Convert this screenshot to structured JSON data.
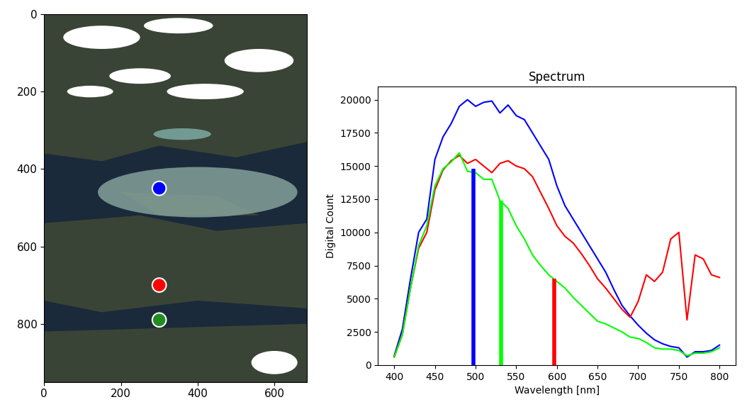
{
  "chart_data": [
    {
      "type": "image",
      "xlim": [
        0,
        685
      ],
      "ylim": [
        950,
        0
      ],
      "xticks": [
        0,
        200,
        400,
        600
      ],
      "yticks": [
        0,
        200,
        400,
        600,
        800
      ],
      "points": {
        "x": [
          300,
          300,
          300
        ],
        "y": [
          450,
          700,
          790
        ],
        "colors": [
          "#0000ff",
          "#ff0000",
          "#228b22"
        ]
      }
    },
    {
      "type": "line",
      "title": "Spectrum",
      "xlabel": "Wavelength [nm]",
      "ylabel": "Digital Count",
      "xlim": [
        380,
        820
      ],
      "ylim": [
        0,
        21000
      ],
      "xticks": [
        400,
        450,
        500,
        550,
        600,
        650,
        700,
        750,
        800
      ],
      "yticks": [
        0,
        2500,
        5000,
        7500,
        10000,
        12500,
        15000,
        17500,
        20000
      ],
      "x": [
        400,
        410,
        420,
        430,
        440,
        450,
        460,
        470,
        480,
        490,
        500,
        510,
        520,
        530,
        540,
        550,
        560,
        570,
        580,
        590,
        600,
        610,
        620,
        630,
        640,
        650,
        660,
        670,
        680,
        690,
        700,
        710,
        720,
        730,
        740,
        750,
        760,
        770,
        780,
        790,
        800
      ],
      "series": [
        {
          "color": "#0000ff",
          "values": [
            700,
            2700,
            6500,
            10000,
            11000,
            15500,
            17200,
            18200,
            19500,
            20000,
            19500,
            19800,
            19900,
            19000,
            19600,
            18800,
            18500,
            17500,
            16500,
            15500,
            13500,
            12000,
            11000,
            10000,
            9000,
            8000,
            7000,
            5700,
            4500,
            3700,
            3000,
            2400,
            1900,
            1600,
            1400,
            1300,
            600,
            1000,
            1000,
            1100,
            1500
          ]
        },
        {
          "color": "#ff0000",
          "values": [
            600,
            2300,
            5800,
            8800,
            10000,
            13200,
            14700,
            15400,
            15800,
            15200,
            15500,
            15000,
            14500,
            15200,
            15400,
            15000,
            14800,
            14200,
            13000,
            11800,
            10500,
            9700,
            9200,
            8400,
            7500,
            6500,
            5800,
            5000,
            4200,
            3600,
            4800,
            6800,
            6300,
            7000,
            9500,
            10000,
            3400,
            8300,
            8000,
            6800,
            6600
          ]
        },
        {
          "color": "#00ff00",
          "values": [
            600,
            2300,
            5800,
            9000,
            10500,
            13500,
            14800,
            15300,
            16000,
            14600,
            14500,
            14000,
            14000,
            12400,
            11800,
            10500,
            9500,
            8300,
            7500,
            6800,
            6300,
            5800,
            5100,
            4500,
            3900,
            3300,
            3100,
            2800,
            2500,
            2100,
            2000,
            1700,
            1300,
            1200,
            1200,
            1100,
            700,
            900,
            900,
            1000,
            1300
          ]
        }
      ],
      "bands": {
        "x": [
          497,
          531,
          597
        ],
        "values": [
          14800,
          12400,
          6500
        ],
        "colors": [
          "#0000ff",
          "#00ff00",
          "#ff0000"
        ]
      }
    }
  ]
}
